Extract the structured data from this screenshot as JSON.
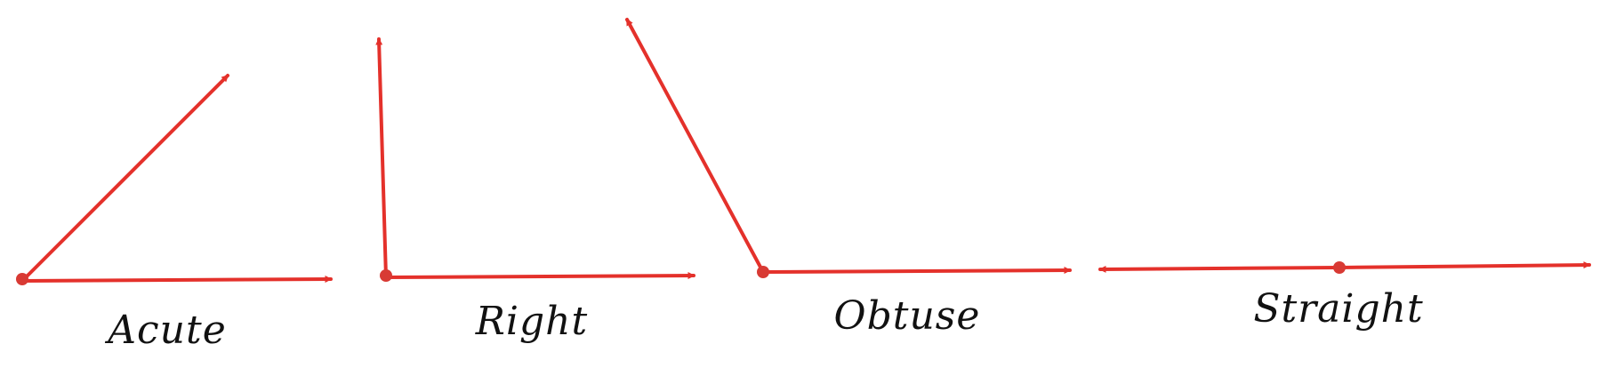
{
  "colors": {
    "ray": "#e4312b",
    "vertex": "#d83a34",
    "text": "#111111"
  },
  "angles": [
    {
      "id": "acute",
      "label": "Acute",
      "degrees": 45
    },
    {
      "id": "right",
      "label": "Right",
      "degrees": 90
    },
    {
      "id": "obtuse",
      "label": "Obtuse",
      "degrees": 119
    },
    {
      "id": "straight",
      "label": "Straight",
      "degrees": 180
    }
  ]
}
